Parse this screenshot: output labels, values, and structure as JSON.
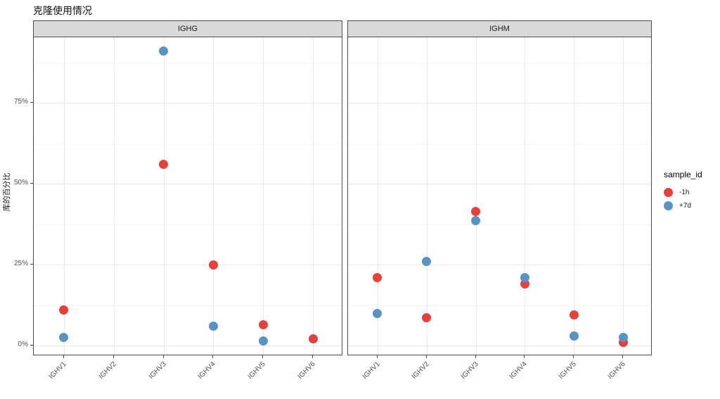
{
  "title": "克隆使用情况",
  "chart_data": {
    "type": "scatter",
    "title": "克隆使用情况",
    "xlabel": "",
    "ylabel": "库的百分比",
    "ylim": [
      -4,
      95
    ],
    "y_ticks": [
      {
        "value": 0,
        "label": "0%"
      },
      {
        "value": 25,
        "label": "25%"
      },
      {
        "value": 50,
        "label": "50%"
      },
      {
        "value": 75,
        "label": "75%"
      }
    ],
    "y_minor_gridlines": [
      12.5,
      37.5,
      62.5,
      87.5
    ],
    "categories": [
      "IGHV1",
      "IGHV2",
      "IGHV3",
      "IGHV4",
      "IGHV5",
      "IGHV6"
    ],
    "grid": "horizontal major+minor, vertical major per category",
    "legend": {
      "title": "sample_id",
      "position": "right",
      "entries": [
        {
          "label": "-1h",
          "color": "#e5413c"
        },
        {
          "label": "+7d",
          "color": "#5b92c4"
        }
      ]
    },
    "facets": [
      {
        "label": "IGHG",
        "series": [
          {
            "name": "-1h",
            "color": "#e5413c",
            "points": [
              {
                "x": "IGHV1",
                "y": 11
              },
              {
                "x": "IGHV3",
                "y": 56
              },
              {
                "x": "IGHV4",
                "y": 25
              },
              {
                "x": "IGHV5",
                "y": 6.5
              },
              {
                "x": "IGHV6",
                "y": 2
              }
            ]
          },
          {
            "name": "+7d",
            "color": "#5b92c4",
            "points": [
              {
                "x": "IGHV1",
                "y": 2.5
              },
              {
                "x": "IGHV3",
                "y": 91
              },
              {
                "x": "IGHV4",
                "y": 6
              },
              {
                "x": "IGHV5",
                "y": 1.5
              }
            ]
          }
        ]
      },
      {
        "label": "IGHM",
        "series": [
          {
            "name": "-1h",
            "color": "#e5413c",
            "points": [
              {
                "x": "IGHV1",
                "y": 21
              },
              {
                "x": "IGHV2",
                "y": 8.5
              },
              {
                "x": "IGHV3",
                "y": 41.5
              },
              {
                "x": "IGHV4",
                "y": 19
              },
              {
                "x": "IGHV5",
                "y": 9.5
              },
              {
                "x": "IGHV6",
                "y": 1
              }
            ]
          },
          {
            "name": "+7d",
            "color": "#5b92c4",
            "points": [
              {
                "x": "IGHV1",
                "y": 10
              },
              {
                "x": "IGHV2",
                "y": 26
              },
              {
                "x": "IGHV3",
                "y": 38.5
              },
              {
                "x": "IGHV4",
                "y": 21
              },
              {
                "x": "IGHV5",
                "y": 3
              },
              {
                "x": "IGHV6",
                "y": 2.5
              }
            ]
          }
        ]
      }
    ]
  }
}
